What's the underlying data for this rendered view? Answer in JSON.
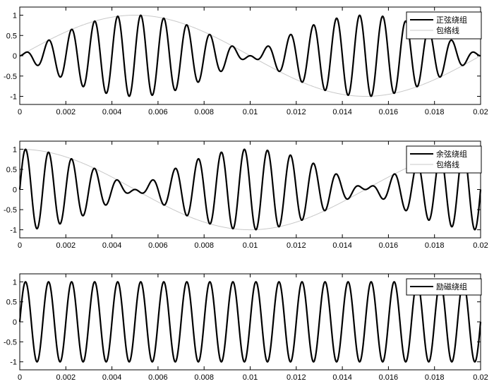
{
  "chart_data": [
    {
      "type": "line",
      "xlim": [
        0,
        0.02
      ],
      "ylim": [
        -1.2,
        1.2
      ],
      "x_ticks": [
        "0",
        "0.002",
        "0.004",
        "0.006",
        "0.008",
        "0.01",
        "0.012",
        "0.014",
        "0.016",
        "0.018",
        "0.02"
      ],
      "y_ticks": [
        "1",
        "0.5",
        "0",
        "-0.5",
        "-1"
      ],
      "grid": false,
      "legend": "top-right",
      "series": [
        {
          "name": "正弦绕组",
          "color": "#000000",
          "form": "sin(2π·envelope_hz·t)·sin(2π·carrier_hz·t)",
          "carrier_hz": 1000,
          "envelope_hz": 50,
          "amplitude": 1
        },
        {
          "name": "包络线",
          "color": "#c8c8c8",
          "form": "sin(2π·envelope_hz·t)",
          "envelope_hz": 50,
          "amplitude": 1
        }
      ]
    },
    {
      "type": "line",
      "xlim": [
        0,
        0.02
      ],
      "ylim": [
        -1.2,
        1.2
      ],
      "x_ticks": [
        "0",
        "0.002",
        "0.004",
        "0.006",
        "0.008",
        "0.01",
        "0.012",
        "0.014",
        "0.016",
        "0.018",
        "0.02"
      ],
      "y_ticks": [
        "1",
        "0.5",
        "0",
        "-0.5",
        "-1"
      ],
      "grid": false,
      "legend": "top-right",
      "series": [
        {
          "name": "余弦绕组",
          "color": "#000000",
          "form": "cos(2π·envelope_hz·t)·sin(2π·carrier_hz·t)",
          "carrier_hz": 1000,
          "envelope_hz": 50,
          "amplitude": 1
        },
        {
          "name": "包络线",
          "color": "#c8c8c8",
          "form": "cos(2π·envelope_hz·t)",
          "envelope_hz": 50,
          "amplitude": 1
        }
      ]
    },
    {
      "type": "line",
      "xlim": [
        0,
        0.02
      ],
      "ylim": [
        -1.2,
        1.2
      ],
      "x_ticks": [
        "0",
        "0.002",
        "0.004",
        "0.006",
        "0.008",
        "0.01",
        "0.012",
        "0.014",
        "0.016",
        "0.018",
        "0.02"
      ],
      "y_ticks": [
        "1",
        "0.5",
        "0",
        "-0.5",
        "-1"
      ],
      "grid": false,
      "legend": "top-right",
      "series": [
        {
          "name": "励磁绕组",
          "color": "#000000",
          "form": "sin(2π·carrier_hz·t)",
          "carrier_hz": 1000,
          "amplitude": 1
        }
      ]
    }
  ]
}
